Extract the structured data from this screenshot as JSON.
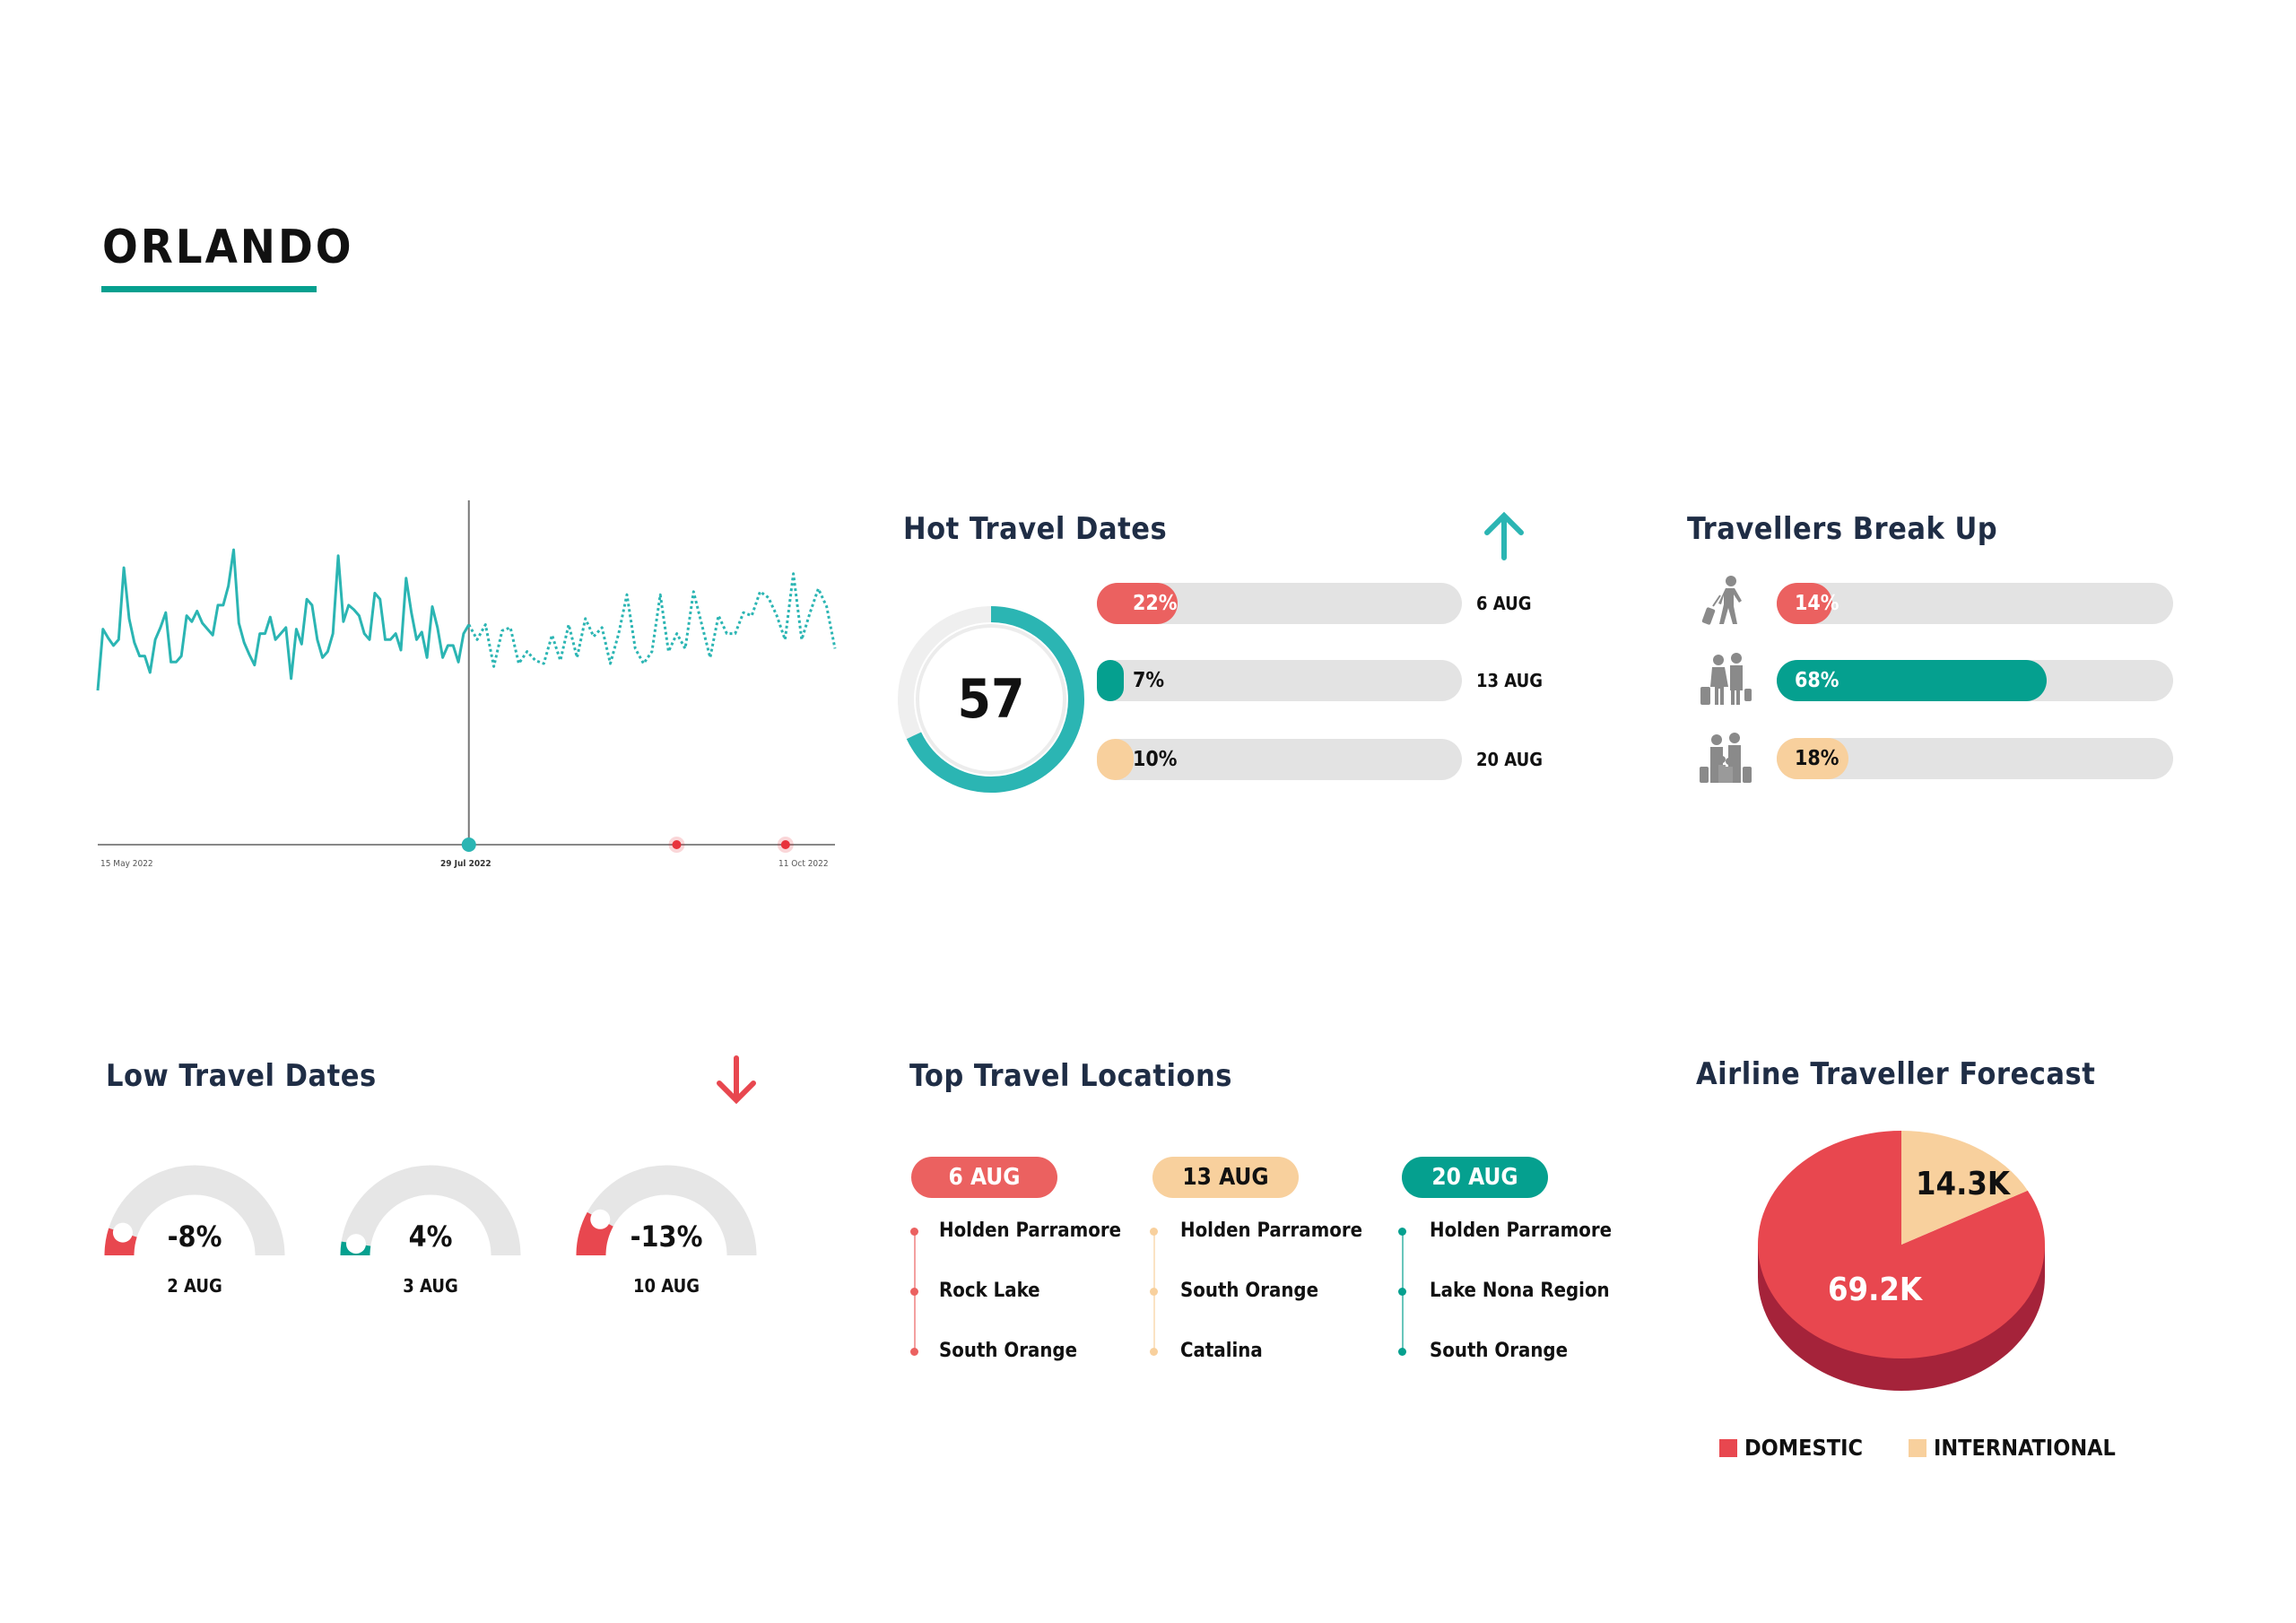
{
  "title": "ORLANDO",
  "colors": {
    "teal": "#2bb5b3",
    "dark_teal": "#05a08f",
    "red": "#e8474f",
    "coral": "#eb6160",
    "peach": "#f8d09d",
    "track": "#e3e3e3",
    "heading": "#1f2d45",
    "pie_side": "#a5233a"
  },
  "chart_data": [
    {
      "type": "line",
      "x_start": "15 May 2022",
      "x_split": "29 Jul 2022",
      "x_end": "11 Oct 2022",
      "tick_labels": [
        "15 May 2022",
        "29 Jul 2022",
        "11 Oct 2022"
      ],
      "ylim": [
        0,
        115
      ],
      "grid": false,
      "series": [
        {
          "style": "solid",
          "values": [
            51.5,
            72,
            69,
            66.5,
            68.5,
            92.5,
            75.5,
            67.5,
            63,
            63,
            57.5,
            68.5,
            72.5,
            77.5,
            61,
            61,
            63,
            76.5,
            74.5,
            78,
            74,
            72,
            70,
            80,
            80,
            86.5,
            98.5,
            74,
            67.5,
            63.5,
            60,
            70.5,
            70.5,
            76,
            68.5,
            70.5,
            72.5,
            55.5,
            72,
            67,
            82,
            80,
            68.5,
            62.5,
            64.5,
            70.5,
            96.5,
            74.5,
            80,
            78.5,
            76.5,
            70.5,
            68.5,
            84,
            82,
            68.5,
            68.5,
            70.5,
            65,
            89,
            77.5,
            68.5,
            71,
            62.5,
            79.5,
            72.5,
            62.5,
            66.5,
            66.5,
            61,
            70.5,
            73.5
          ]
        },
        {
          "style": "dotted",
          "values": [
            73.5,
            68.5,
            73.5,
            59.5,
            71.5,
            72.5,
            60.5,
            64.5,
            61.5,
            60.5,
            70,
            61.5,
            73.5,
            62.5,
            75.5,
            69.5,
            72.5,
            60.5,
            70.5,
            83.5,
            65.5,
            60.5,
            64.5,
            83.5,
            64.5,
            70.5,
            65.5,
            84.5,
            73.5,
            62.5,
            76.5,
            70.5,
            70.5,
            77.5,
            76.5,
            84.5,
            82.5,
            76.5,
            68.5,
            90.5,
            68.5,
            77.5,
            85.5,
            79.5,
            65.5
          ]
        }
      ],
      "markers": [
        {
          "date": "29 Jul 2022",
          "color": "#2bb5b3"
        },
        {
          "date": "9 Sep 2022",
          "color": "#e8323c"
        },
        {
          "date": "1 Oct 2022",
          "color": "#e8323c"
        }
      ]
    },
    {
      "type": "pie",
      "slices": [
        {
          "name": "DOMESTIC",
          "label": "69.2K",
          "value": 69.2,
          "color": "#e8474f"
        },
        {
          "name": "INTERNATIONAL",
          "label": "14.3K",
          "value": 14.3,
          "color": "#f8d09d"
        }
      ],
      "legend": "bottom"
    }
  ],
  "hot": {
    "heading": "Hot Travel Dates",
    "icon": "arrow-up-icon",
    "score": "57",
    "ring_level": 0.68,
    "rows": [
      {
        "pct": "22%",
        "value": 22,
        "date": "6 AUG",
        "color": "#eb6160",
        "text_color": "#ffffff"
      },
      {
        "pct": "7%",
        "value": 7,
        "date": "13 AUG",
        "color": "#05a08f",
        "text_color": "#111111"
      },
      {
        "pct": "10%",
        "value": 10,
        "date": "20 AUG",
        "color": "#f8d09d",
        "text_color": "#111111"
      }
    ]
  },
  "travellers": {
    "heading": "Travellers Break Up",
    "rows": [
      {
        "icon": "solo-traveller-icon",
        "pct": "14%",
        "value": 14,
        "color": "#eb6160",
        "text_color": "#ffffff"
      },
      {
        "icon": "couple-traveller-icon",
        "pct": "68%",
        "value": 68,
        "color": "#05a08f",
        "text_color": "#ffffff"
      },
      {
        "icon": "family-traveller-icon",
        "pct": "18%",
        "value": 18,
        "color": "#f8d09d",
        "text_color": "#111111"
      }
    ]
  },
  "low": {
    "heading": "Low Travel Dates",
    "icon": "arrow-down-icon",
    "gauges": [
      {
        "value": -8,
        "label": "-8%",
        "date": "2 AUG",
        "color": "#e8474f"
      },
      {
        "value": 4,
        "label": "4%",
        "date": "3 AUG",
        "color": "#05a08f"
      },
      {
        "value": -13,
        "label": "-13%",
        "date": "10 AUG",
        "color": "#e8474f"
      }
    ]
  },
  "locations": {
    "heading": "Top Travel Locations",
    "columns": [
      {
        "date": "6 AUG",
        "color": "#eb6160",
        "text_color": "#ffffff",
        "items": [
          "Holden Parramore",
          "Rock Lake",
          "South Orange"
        ]
      },
      {
        "date": "13 AUG",
        "color": "#f8d09d",
        "text_color": "#111111",
        "items": [
          "Holden Parramore",
          "South Orange",
          "Catalina"
        ]
      },
      {
        "date": "20 AUG",
        "color": "#05a08f",
        "text_color": "#ffffff",
        "items": [
          "Holden Parramore",
          "Lake Nona Region",
          "South Orange"
        ]
      }
    ]
  },
  "forecast": {
    "heading": "Airline Traveller Forecast"
  }
}
